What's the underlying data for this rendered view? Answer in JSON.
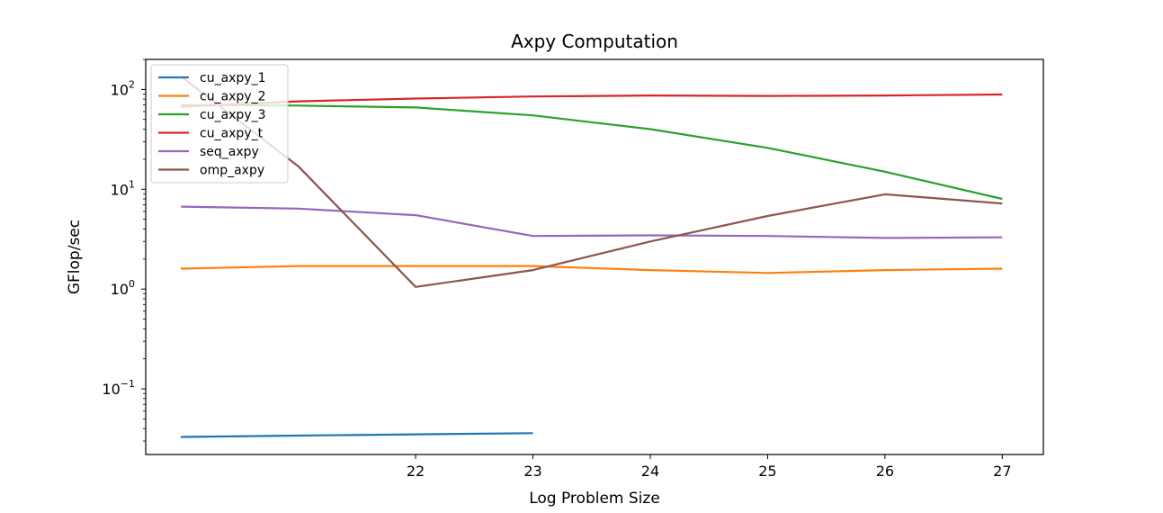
{
  "chart_data": {
    "type": "line",
    "title": "Axpy Computation",
    "xlabel": "Log Problem Size",
    "ylabel": "GFlop/sec",
    "yscale": "log",
    "xlim": [
      19.7,
      27.35
    ],
    "ylim": [
      0.022,
      200
    ],
    "xticks": [
      22,
      23,
      24,
      25,
      26,
      27
    ],
    "xtick_labels": [
      "22",
      "23",
      "24",
      "25",
      "26",
      "27"
    ],
    "yticks": [
      0.1,
      1,
      10,
      100
    ],
    "ytick_labels": [
      {
        "base": "10",
        "exp": "−1"
      },
      {
        "base": "10",
        "exp": "0"
      },
      {
        "base": "10",
        "exp": "1"
      },
      {
        "base": "10",
        "exp": "2"
      }
    ],
    "grid": false,
    "legend_position": "top-left",
    "series": [
      {
        "name": "cu_axpy_1",
        "color": "#1f77b4",
        "points": [
          [
            20,
            0.033
          ],
          [
            21,
            0.034
          ],
          [
            22,
            0.035
          ],
          [
            23,
            0.036
          ]
        ]
      },
      {
        "name": "cu_axpy_2",
        "color": "#ff7f0e",
        "points": [
          [
            20,
            1.6
          ],
          [
            21,
            1.7
          ],
          [
            22,
            1.7
          ],
          [
            23,
            1.7
          ],
          [
            24,
            1.55
          ],
          [
            25,
            1.45
          ],
          [
            26,
            1.55
          ],
          [
            27,
            1.6
          ]
        ]
      },
      {
        "name": "cu_axpy_3",
        "color": "#2ca02c",
        "points": [
          [
            20,
            70
          ],
          [
            21,
            69
          ],
          [
            22,
            66
          ],
          [
            23,
            55
          ],
          [
            24,
            40
          ],
          [
            25,
            26
          ],
          [
            26,
            15
          ],
          [
            27,
            8
          ]
        ]
      },
      {
        "name": "cu_axpy_t",
        "color": "#d62728",
        "points": [
          [
            20,
            67
          ],
          [
            21,
            76
          ],
          [
            22,
            81
          ],
          [
            23,
            85
          ],
          [
            24,
            87
          ],
          [
            25,
            86
          ],
          [
            26,
            87
          ],
          [
            27,
            89
          ]
        ]
      },
      {
        "name": "seq_axpy",
        "color": "#9467bd",
        "points": [
          [
            20,
            6.7
          ],
          [
            21,
            6.4
          ],
          [
            22,
            5.5
          ],
          [
            23,
            3.4
          ],
          [
            24,
            3.45
          ],
          [
            25,
            3.4
          ],
          [
            26,
            3.25
          ],
          [
            27,
            3.3
          ]
        ]
      },
      {
        "name": "omp_axpy",
        "color": "#8c564b",
        "points": [
          [
            20,
            135
          ],
          [
            21,
            17
          ],
          [
            22,
            1.05
          ],
          [
            23,
            1.55
          ],
          [
            24,
            3.0
          ],
          [
            25,
            5.4
          ],
          [
            26,
            8.9
          ],
          [
            27,
            7.2
          ]
        ]
      }
    ]
  }
}
